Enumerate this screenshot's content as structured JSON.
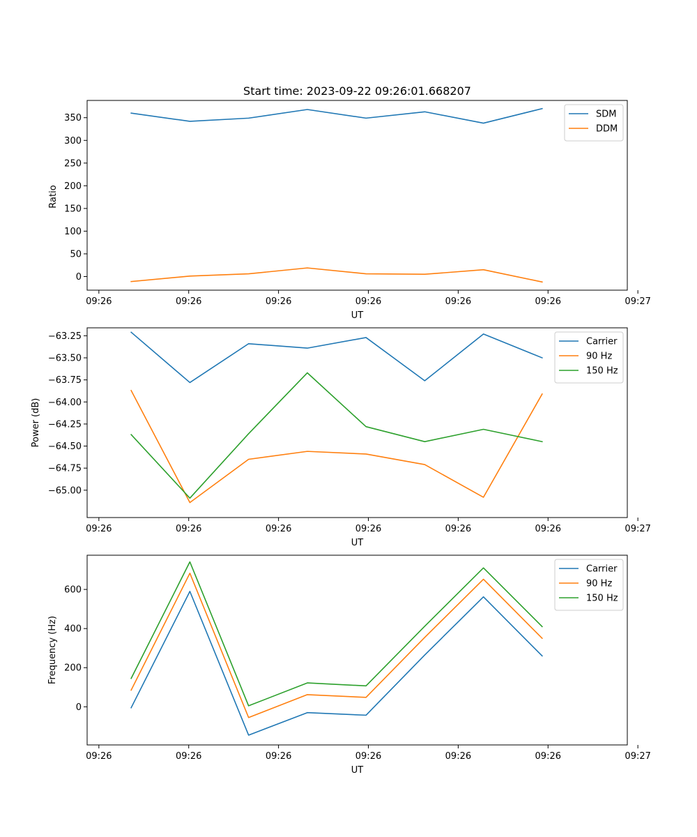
{
  "colors": {
    "c0": "#1f77b4",
    "c1": "#ff7f0e",
    "c2": "#2ca02c",
    "axes": "#000000",
    "background": "#ffffff"
  },
  "chart_data": [
    {
      "type": "line",
      "title": "Start time: 2023-09-22 09:26:01.668207",
      "xlabel": "UT",
      "ylabel": "Ratio",
      "x": [
        0,
        1,
        2,
        3,
        4,
        5,
        6,
        7
      ],
      "xlim": [
        -0.75,
        8.45
      ],
      "xticks": [
        -0.55,
        0.98,
        2.51,
        4.04,
        5.57,
        7.1,
        8.63
      ],
      "xtick_labels": [
        "09:26",
        "09:26",
        "09:26",
        "09:26",
        "09:26",
        "09:26",
        "09:27"
      ],
      "ylim": [
        -30,
        388
      ],
      "yticks": [
        0,
        50,
        100,
        150,
        200,
        250,
        300,
        350
      ],
      "ytick_labels": [
        "0",
        "50",
        "100",
        "150",
        "200",
        "250",
        "300",
        "350"
      ],
      "legend": "top-right",
      "series": [
        {
          "name": "SDM",
          "color": "#1f77b4",
          "values": [
            360,
            342,
            349,
            368,
            349,
            363,
            338,
            370
          ]
        },
        {
          "name": "DDM",
          "color": "#ff7f0e",
          "values": [
            -11,
            1,
            6,
            19,
            6,
            5,
            15,
            -12
          ]
        }
      ]
    },
    {
      "type": "line",
      "title": "",
      "xlabel": "UT",
      "ylabel": "Power (dB)",
      "x": [
        0,
        1,
        2,
        3,
        4,
        5,
        6,
        7
      ],
      "xlim": [
        -0.75,
        8.45
      ],
      "xticks": [
        -0.55,
        0.98,
        2.51,
        4.04,
        5.57,
        7.1,
        8.63
      ],
      "xtick_labels": [
        "09:26",
        "09:26",
        "09:26",
        "09:26",
        "09:26",
        "09:26",
        "09:27"
      ],
      "ylim": [
        -65.31,
        -63.16
      ],
      "yticks": [
        -65.0,
        -64.75,
        -64.5,
        -64.25,
        -64.0,
        -63.75,
        -63.5,
        -63.25
      ],
      "ytick_labels": [
        "−65.00",
        "−64.75",
        "−64.50",
        "−64.25",
        "−64.00",
        "−63.75",
        "−63.50",
        "−63.25"
      ],
      "legend": "top-right",
      "series": [
        {
          "name": "Carrier",
          "color": "#1f77b4",
          "values": [
            -63.21,
            -63.78,
            -63.34,
            -63.39,
            -63.27,
            -63.76,
            -63.23,
            -63.5
          ]
        },
        {
          "name": "90 Hz",
          "color": "#ff7f0e",
          "values": [
            -63.87,
            -65.14,
            -64.65,
            -64.56,
            -64.59,
            -64.71,
            -65.08,
            -63.91
          ]
        },
        {
          "name": "150 Hz",
          "color": "#2ca02c",
          "values": [
            -64.37,
            -65.09,
            -64.36,
            -63.67,
            -64.28,
            -64.45,
            -64.31,
            -64.45
          ]
        }
      ]
    },
    {
      "type": "line",
      "title": "",
      "xlabel": "UT",
      "ylabel": "Frequency (Hz)",
      "x": [
        0,
        1,
        2,
        3,
        4,
        5,
        6,
        7
      ],
      "xlim": [
        -0.75,
        8.45
      ],
      "xticks": [
        -0.55,
        0.98,
        2.51,
        4.04,
        5.57,
        7.1,
        8.63
      ],
      "xtick_labels": [
        "09:26",
        "09:26",
        "09:26",
        "09:26",
        "09:26",
        "09:26",
        "09:27"
      ],
      "ylim": [
        -195,
        775
      ],
      "yticks": [
        0,
        200,
        400,
        600
      ],
      "ytick_labels": [
        "0",
        "200",
        "400",
        "600"
      ],
      "legend": "top-right",
      "series": [
        {
          "name": "Carrier",
          "color": "#1f77b4",
          "values": [
            -5,
            590,
            -145,
            -30,
            -43,
            265,
            562,
            260
          ]
        },
        {
          "name": "90 Hz",
          "color": "#ff7f0e",
          "values": [
            85,
            683,
            -55,
            62,
            48,
            355,
            652,
            350
          ]
        },
        {
          "name": "150 Hz",
          "color": "#2ca02c",
          "values": [
            145,
            741,
            5,
            122,
            107,
            412,
            710,
            410
          ]
        }
      ]
    }
  ]
}
